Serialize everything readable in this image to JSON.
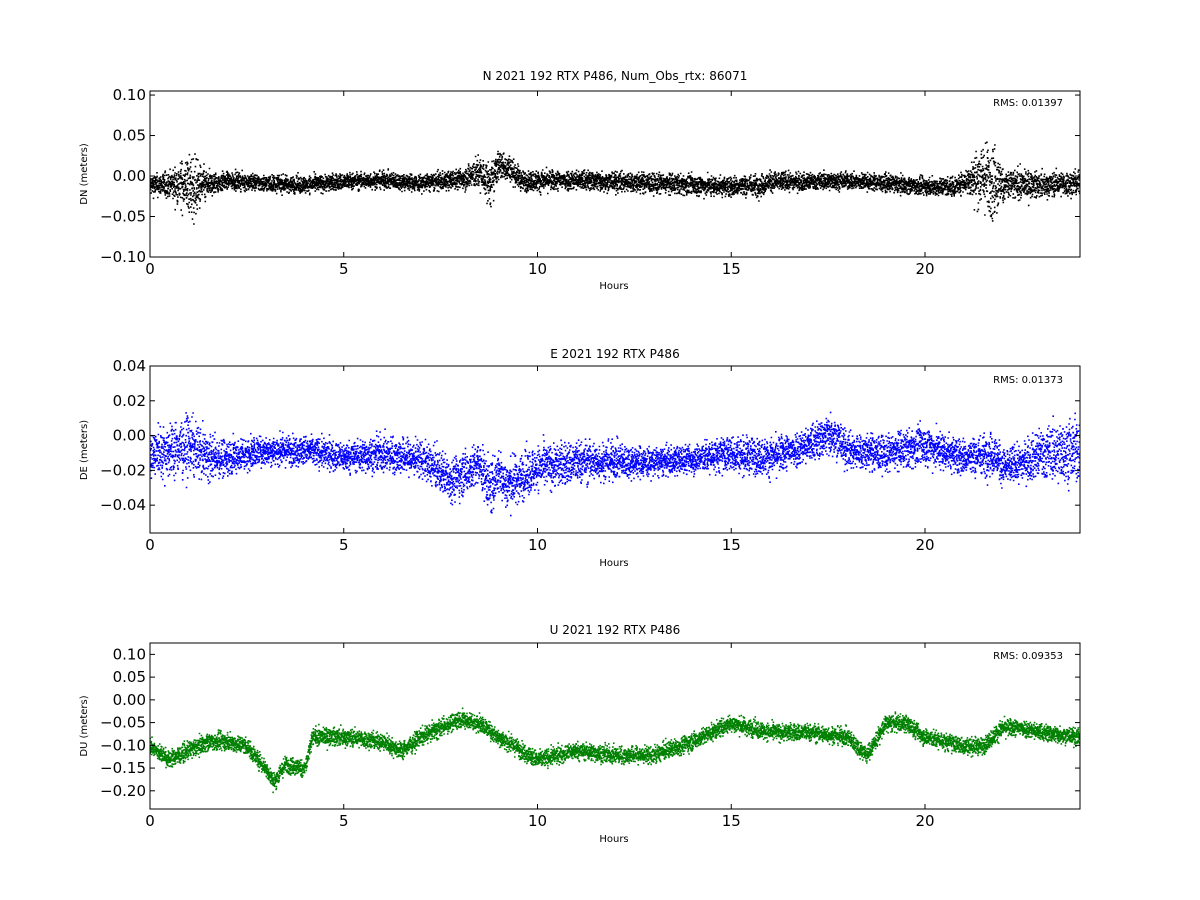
{
  "chart_data": [
    {
      "type": "scatter",
      "title": "N 2021 192 RTX  P486, Num_Obs_rtx: 86071",
      "xlabel": "Hours",
      "ylabel": "DN (meters)",
      "xlim": [
        0,
        24
      ],
      "ylim": [
        -0.1,
        0.105
      ],
      "xticks": [
        0,
        5,
        10,
        15,
        20
      ],
      "xtick_labels": [
        "0",
        "5",
        "10",
        "15",
        "20"
      ],
      "yticks": [
        -0.1,
        -0.05,
        0.0,
        0.05,
        0.1
      ],
      "ytick_labels": [
        "−0.10",
        "−0.05",
        "0.00",
        "0.05",
        "0.10"
      ],
      "annotation": "RMS:  0.01397",
      "color": "#000000",
      "annotation_color": "#0000ff",
      "grid": false,
      "series": [
        {
          "x": [
            0,
            0.5,
            1,
            1.1,
            1.5,
            2,
            3,
            4,
            5,
            6,
            7,
            8,
            8.5,
            8.8,
            9,
            9.3,
            9.6,
            10,
            11,
            12,
            13,
            14,
            15,
            15.8,
            16,
            17,
            18,
            19,
            20,
            20.8,
            21,
            21.5,
            21.8,
            22,
            23,
            24
          ],
          "y": [
            -0.01,
            -0.01,
            -0.01,
            -0.015,
            -0.01,
            -0.005,
            -0.008,
            -0.01,
            -0.006,
            -0.004,
            -0.008,
            -0.003,
            0.005,
            -0.01,
            0.015,
            0.01,
            -0.005,
            -0.005,
            -0.004,
            -0.006,
            -0.008,
            -0.01,
            -0.012,
            -0.01,
            -0.006,
            -0.006,
            -0.005,
            -0.008,
            -0.012,
            -0.012,
            -0.006,
            0.0,
            -0.005,
            -0.01,
            -0.01,
            -0.008
          ],
          "spread": [
            0.012,
            0.015,
            0.035,
            0.04,
            0.015,
            0.01,
            0.01,
            0.01,
            0.01,
            0.01,
            0.01,
            0.012,
            0.02,
            0.025,
            0.018,
            0.015,
            0.012,
            0.012,
            0.012,
            0.012,
            0.012,
            0.012,
            0.012,
            0.013,
            0.012,
            0.01,
            0.01,
            0.01,
            0.01,
            0.012,
            0.012,
            0.04,
            0.045,
            0.02,
            0.014,
            0.015
          ]
        }
      ]
    },
    {
      "type": "scatter",
      "title": "E 2021 192 RTX  P486",
      "xlabel": "Hours",
      "ylabel": "DE (meters)",
      "xlim": [
        0,
        24
      ],
      "ylim": [
        -0.056,
        0.04
      ],
      "xticks": [
        0,
        5,
        10,
        15,
        20
      ],
      "xtick_labels": [
        "0",
        "5",
        "10",
        "15",
        "20"
      ],
      "yticks": [
        -0.04,
        -0.02,
        0.0,
        0.02,
        0.04
      ],
      "ytick_labels": [
        "−0.04",
        "−0.02",
        "0.00",
        "0.02",
        "0.04"
      ],
      "annotation": "RMS:  0.01373",
      "color": "#0000ff",
      "annotation_color": "#0000ff",
      "grid": false,
      "series": [
        {
          "x": [
            0,
            0.5,
            1,
            1.5,
            2,
            3,
            4,
            5,
            6,
            7,
            7.8,
            8.5,
            8.8,
            9,
            9.2,
            10,
            11,
            12,
            13,
            14,
            15,
            16,
            17,
            17.6,
            18,
            19,
            20,
            21,
            21.8,
            22,
            22.5,
            23,
            24
          ],
          "y": [
            -0.01,
            -0.008,
            -0.005,
            -0.012,
            -0.012,
            -0.008,
            -0.008,
            -0.012,
            -0.01,
            -0.013,
            -0.025,
            -0.016,
            -0.03,
            -0.02,
            -0.028,
            -0.018,
            -0.015,
            -0.014,
            -0.015,
            -0.013,
            -0.01,
            -0.012,
            -0.005,
            0.002,
            -0.008,
            -0.01,
            -0.005,
            -0.012,
            -0.01,
            -0.018,
            -0.015,
            -0.01,
            -0.008
          ],
          "spread": [
            0.012,
            0.015,
            0.016,
            0.012,
            0.01,
            0.008,
            0.008,
            0.008,
            0.01,
            0.01,
            0.012,
            0.012,
            0.015,
            0.012,
            0.014,
            0.012,
            0.012,
            0.01,
            0.008,
            0.008,
            0.01,
            0.01,
            0.01,
            0.012,
            0.01,
            0.01,
            0.011,
            0.01,
            0.012,
            0.01,
            0.01,
            0.014,
            0.018
          ]
        }
      ]
    },
    {
      "type": "scatter",
      "title": "U 2021 192 RTX  P486",
      "xlabel": "Hours",
      "ylabel": "DU (meters)",
      "xlim": [
        0,
        24
      ],
      "ylim": [
        -0.24,
        0.125
      ],
      "xticks": [
        0,
        5,
        10,
        15,
        20
      ],
      "xtick_labels": [
        "0",
        "5",
        "10",
        "15",
        "20"
      ],
      "yticks": [
        -0.2,
        -0.15,
        -0.1,
        -0.05,
        0.0,
        0.05,
        0.1
      ],
      "ytick_labels": [
        "−0.20",
        "−0.15",
        "−0.10",
        "−0.05",
        "0.00",
        "0.05",
        "0.10"
      ],
      "annotation": "RMS:  0.09353",
      "color": "#008000",
      "annotation_color": "#0000ff",
      "grid": false,
      "series": [
        {
          "x": [
            0,
            0.5,
            1,
            1.5,
            2,
            2.5,
            3,
            3.2,
            3.5,
            4,
            4.2,
            5,
            6,
            6.5,
            7,
            8,
            8.5,
            9,
            10,
            11,
            12,
            13,
            14,
            15,
            16,
            17,
            18,
            18.5,
            19,
            19.5,
            20,
            21,
            21.5,
            22,
            22.5,
            23,
            24
          ],
          "y": [
            -0.1,
            -0.13,
            -0.11,
            -0.09,
            -0.09,
            -0.1,
            -0.15,
            -0.18,
            -0.14,
            -0.15,
            -0.08,
            -0.08,
            -0.09,
            -0.11,
            -0.08,
            -0.04,
            -0.05,
            -0.08,
            -0.13,
            -0.11,
            -0.12,
            -0.12,
            -0.09,
            -0.05,
            -0.07,
            -0.07,
            -0.08,
            -0.12,
            -0.05,
            -0.05,
            -0.08,
            -0.1,
            -0.1,
            -0.06,
            -0.06,
            -0.07,
            -0.08
          ]
        }
      ]
    }
  ]
}
